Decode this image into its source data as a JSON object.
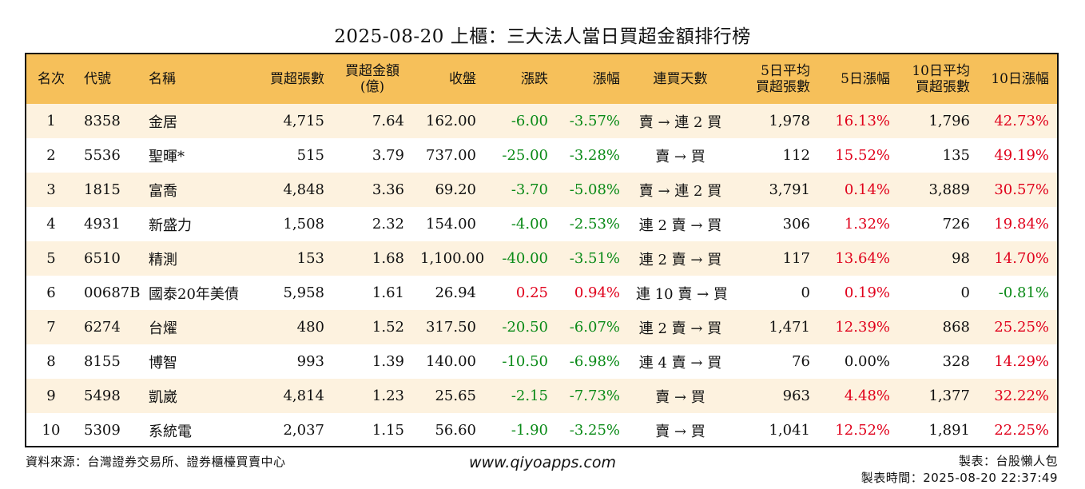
{
  "title": "2025-08-20 上櫃：三大法人當日買超金額排行榜",
  "columns": [
    "名次",
    "代號",
    "名稱",
    "買超張數",
    "買超金額\n(億)",
    "收盤",
    "漲跌",
    "漲幅",
    "連買天數",
    "5日平均\n買超張數",
    "5日漲幅",
    "10日平均\n買超張數",
    "10日漲幅"
  ],
  "rows": [
    {
      "rank": "1",
      "code": "8358",
      "name": "金居",
      "buy_lots": "4,715",
      "buy_amount": "7.64",
      "close": "162.00",
      "change": "-6.00",
      "change_pct": "-3.57%",
      "streak": "賣 → 連 2 買",
      "avg5_lots": "1,978",
      "pct5": "16.13%",
      "avg10_lots": "1,796",
      "pct10": "42.73%"
    },
    {
      "rank": "2",
      "code": "5536",
      "name": "聖暉*",
      "buy_lots": "515",
      "buy_amount": "3.79",
      "close": "737.00",
      "change": "-25.00",
      "change_pct": "-3.28%",
      "streak": "賣 → 買",
      "avg5_lots": "112",
      "pct5": "15.52%",
      "avg10_lots": "135",
      "pct10": "49.19%"
    },
    {
      "rank": "3",
      "code": "1815",
      "name": "富喬",
      "buy_lots": "4,848",
      "buy_amount": "3.36",
      "close": "69.20",
      "change": "-3.70",
      "change_pct": "-5.08%",
      "streak": "賣 → 連 2 買",
      "avg5_lots": "3,791",
      "pct5": "0.14%",
      "avg10_lots": "3,889",
      "pct10": "30.57%"
    },
    {
      "rank": "4",
      "code": "4931",
      "name": "新盛力",
      "buy_lots": "1,508",
      "buy_amount": "2.32",
      "close": "154.00",
      "change": "-4.00",
      "change_pct": "-2.53%",
      "streak": "連 2 賣 → 買",
      "avg5_lots": "306",
      "pct5": "1.32%",
      "avg10_lots": "726",
      "pct10": "19.84%"
    },
    {
      "rank": "5",
      "code": "6510",
      "name": "精測",
      "buy_lots": "153",
      "buy_amount": "1.68",
      "close": "1,100.00",
      "change": "-40.00",
      "change_pct": "-3.51%",
      "streak": "連 2 賣 → 買",
      "avg5_lots": "117",
      "pct5": "13.64%",
      "avg10_lots": "98",
      "pct10": "14.70%"
    },
    {
      "rank": "6",
      "code": "00687B",
      "name": "國泰20年美債",
      "buy_lots": "5,958",
      "buy_amount": "1.61",
      "close": "26.94",
      "change": "0.25",
      "change_pct": "0.94%",
      "streak": "連 10 賣 → 買",
      "avg5_lots": "0",
      "pct5": "0.19%",
      "avg10_lots": "0",
      "pct10": "-0.81%"
    },
    {
      "rank": "7",
      "code": "6274",
      "name": "台燿",
      "buy_lots": "480",
      "buy_amount": "1.52",
      "close": "317.50",
      "change": "-20.50",
      "change_pct": "-6.07%",
      "streak": "連 2 賣 → 買",
      "avg5_lots": "1,471",
      "pct5": "12.39%",
      "avg10_lots": "868",
      "pct10": "25.25%"
    },
    {
      "rank": "8",
      "code": "8155",
      "name": "博智",
      "buy_lots": "993",
      "buy_amount": "1.39",
      "close": "140.00",
      "change": "-10.50",
      "change_pct": "-6.98%",
      "streak": "連 4 賣 → 買",
      "avg5_lots": "76",
      "pct5": "0.00%",
      "avg10_lots": "328",
      "pct10": "14.29%"
    },
    {
      "rank": "9",
      "code": "5498",
      "name": "凱崴",
      "buy_lots": "4,814",
      "buy_amount": "1.23",
      "close": "25.65",
      "change": "-2.15",
      "change_pct": "-7.73%",
      "streak": "賣 → 買",
      "avg5_lots": "963",
      "pct5": "4.48%",
      "avg10_lots": "1,377",
      "pct10": "32.22%"
    },
    {
      "rank": "10",
      "code": "5309",
      "name": "系統電",
      "buy_lots": "2,037",
      "buy_amount": "1.15",
      "close": "56.60",
      "change": "-1.90",
      "change_pct": "-3.25%",
      "streak": "賣 → 買",
      "avg5_lots": "1,041",
      "pct5": "12.52%",
      "avg10_lots": "1,891",
      "pct10": "22.25%"
    }
  ],
  "footer": {
    "source": "資料來源：台灣證券交易所、證券櫃檯買賣中心",
    "website": "www.qiyoapps.com",
    "maker": "製表：台股懶人包",
    "made_time": "製表時間：2025-08-20 22:37:49"
  },
  "colors": {
    "header_bg": "#f6c05a",
    "stripe_bg": "#fdf2df",
    "down": "#0a8a17",
    "up": "#e0001b"
  }
}
